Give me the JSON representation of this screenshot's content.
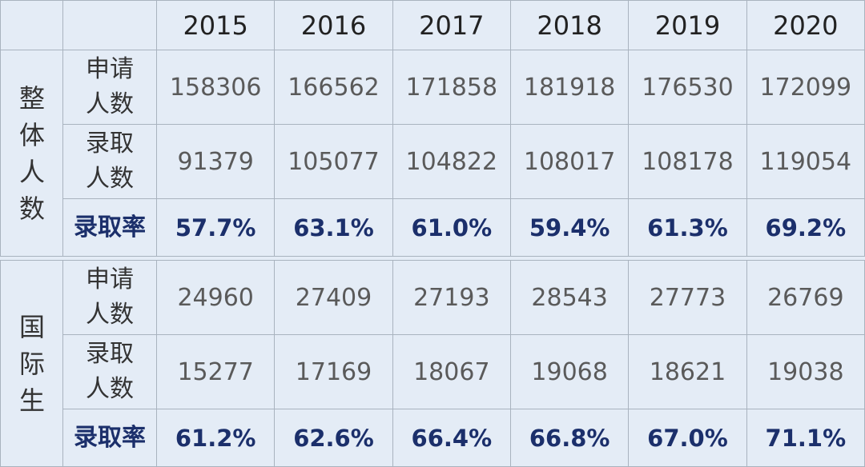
{
  "years": [
    "2015",
    "2016",
    "2017",
    "2018",
    "2019",
    "2020"
  ],
  "groups": [
    {
      "label": "整体人数",
      "rows": [
        {
          "label": "申请人数",
          "kind": "val",
          "values": [
            "158306",
            "166562",
            "171858",
            "181918",
            "176530",
            "172099"
          ]
        },
        {
          "label": "录取人数",
          "kind": "val",
          "values": [
            "91379",
            "105077",
            "104822",
            "108017",
            "108178",
            "119054"
          ]
        },
        {
          "label": "录取率",
          "kind": "rate",
          "values": [
            "57.7%",
            "63.1%",
            "61.0%",
            "59.4%",
            "61.3%",
            "69.2%"
          ]
        }
      ]
    },
    {
      "label": "国际生",
      "rows": [
        {
          "label": "申请人数",
          "kind": "val",
          "values": [
            "24960",
            "27409",
            "27193",
            "28543",
            "27773",
            "26769"
          ]
        },
        {
          "label": "录取人数",
          "kind": "val",
          "values": [
            "15277",
            "17169",
            "18067",
            "19068",
            "18621",
            "19038"
          ]
        },
        {
          "label": "录取率",
          "kind": "rate",
          "values": [
            "61.2%",
            "62.6%",
            "66.4%",
            "66.8%",
            "67.0%",
            "71.1%"
          ]
        }
      ]
    }
  ]
}
